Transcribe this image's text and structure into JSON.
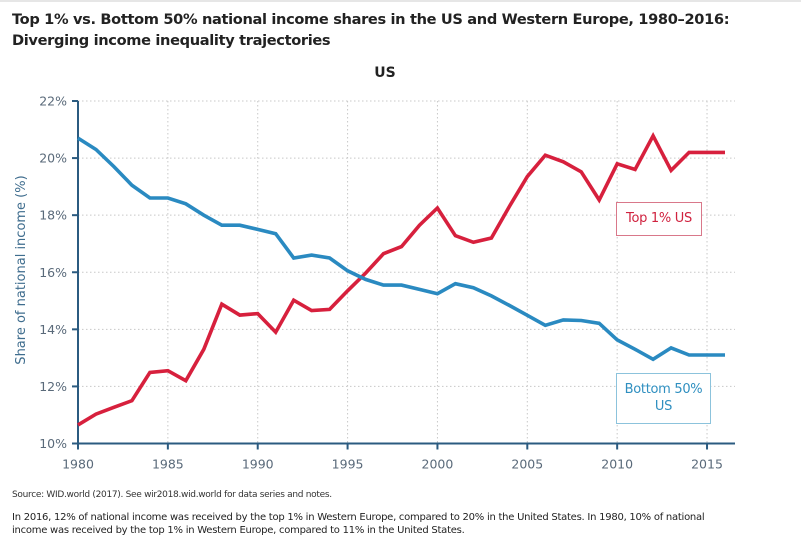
{
  "title_line1": "Top 1% vs. Bottom 50% national income shares in the US and Western Europe, 1980–2016:",
  "title_line2": "Diverging income inequality trajectories",
  "source": "Source:  WID.world (2017). See wir2018.wid.world for data series and notes.",
  "note_line1": "In 2016, 12% of national income was received by the top 1% in Western Europe, compared to 20% in the United States. In 1980, 10% of national",
  "note_line2": "income was received by the top 1% in Western Europe, compared to 11% in the United States.",
  "colors": {
    "top1": "#d7203d",
    "bottom50": "#2a8ac1",
    "axis": "#2b5b80",
    "grid": "#c8c8c8"
  },
  "chart_data": {
    "type": "line",
    "title": "US",
    "xlabel": "",
    "ylabel": "Share of national income (%)",
    "xlim": [
      1980,
      2016
    ],
    "ylim": [
      10,
      22
    ],
    "grid": true,
    "x_ticks": [
      1980,
      1985,
      1990,
      1995,
      2000,
      2005,
      2010,
      2015
    ],
    "x_tick_labels": [
      "1980",
      "1985",
      "1990",
      "1995",
      "2000",
      "2005",
      "2010",
      "2015"
    ],
    "y_ticks": [
      10,
      12,
      14,
      16,
      18,
      20,
      22
    ],
    "y_tick_labels": [
      "10%",
      "12%",
      "14%",
      "16%",
      "18%",
      "20%",
      "22%"
    ],
    "x": [
      1980,
      1981,
      1982,
      1983,
      1984,
      1985,
      1986,
      1987,
      1988,
      1989,
      1990,
      1991,
      1992,
      1993,
      1994,
      1995,
      1996,
      1997,
      1998,
      1999,
      2000,
      2001,
      2002,
      2003,
      2004,
      2005,
      2006,
      2007,
      2008,
      2009,
      2010,
      2011,
      2012,
      2013,
      2014,
      2015,
      2016
    ],
    "series": [
      {
        "name": "Top 1% US",
        "label": "Top 1% US",
        "color_key": "top1",
        "values": [
          10.65,
          11.03,
          11.27,
          11.5,
          12.49,
          12.55,
          12.2,
          13.3,
          14.88,
          14.5,
          14.55,
          13.9,
          15.02,
          14.66,
          14.7,
          15.35,
          15.97,
          16.65,
          16.9,
          17.65,
          18.25,
          17.28,
          17.05,
          17.2,
          18.3,
          19.35,
          20.1,
          19.87,
          19.52,
          18.53,
          19.8,
          19.6,
          20.78,
          19.57,
          20.2,
          20.2,
          20.2
        ]
      },
      {
        "name": "Bottom 50% US",
        "label_line1": "Bottom 50%",
        "label_line2": "US",
        "color_key": "bottom50",
        "values": [
          20.7,
          20.3,
          19.7,
          19.05,
          18.6,
          18.6,
          18.4,
          18.0,
          17.65,
          17.65,
          17.5,
          17.35,
          16.5,
          16.6,
          16.5,
          16.05,
          15.75,
          15.55,
          15.55,
          15.4,
          15.25,
          15.6,
          15.46,
          15.17,
          14.84,
          14.49,
          14.14,
          14.33,
          14.31,
          14.21,
          13.63,
          13.3,
          12.95,
          13.35,
          13.1,
          13.1,
          13.1
        ]
      }
    ]
  }
}
